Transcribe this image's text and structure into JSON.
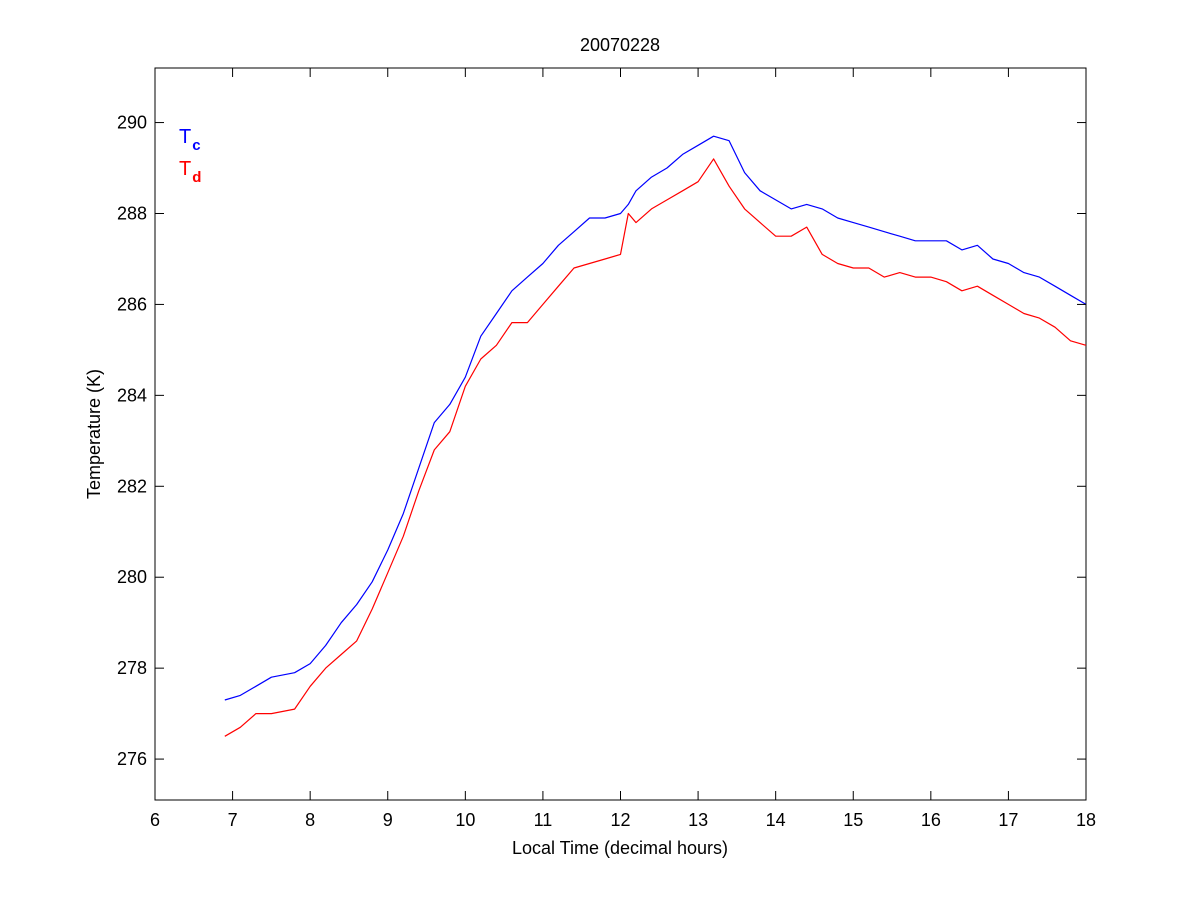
{
  "chart_data": {
    "type": "line",
    "title": "20070228",
    "xlabel": "Local Time (decimal hours)",
    "ylabel": "Temperature (K)",
    "xlim": [
      6,
      18
    ],
    "ylim": [
      275.1,
      291.2
    ],
    "xticks": [
      6,
      7,
      8,
      9,
      10,
      11,
      12,
      13,
      14,
      15,
      16,
      17,
      18
    ],
    "yticks": [
      276,
      278,
      280,
      282,
      284,
      286,
      288,
      290
    ],
    "grid": false,
    "legend_placement": "top-left",
    "series": [
      {
        "name": "T",
        "subscript": "c",
        "color": "#0000ff",
        "x": [
          6.9,
          7.1,
          7.3,
          7.5,
          7.8,
          8.0,
          8.2,
          8.4,
          8.6,
          8.8,
          9.0,
          9.2,
          9.4,
          9.6,
          9.8,
          10.0,
          10.2,
          10.4,
          10.6,
          10.8,
          11.0,
          11.2,
          11.4,
          11.6,
          11.8,
          12.0,
          12.1,
          12.2,
          12.4,
          12.6,
          12.8,
          13.0,
          13.2,
          13.4,
          13.6,
          13.8,
          14.0,
          14.2,
          14.4,
          14.6,
          14.8,
          15.0,
          15.2,
          15.4,
          15.6,
          15.8,
          16.0,
          16.2,
          16.4,
          16.6,
          16.8,
          17.0,
          17.2,
          17.4,
          17.6,
          17.8,
          18.0
        ],
        "y": [
          277.3,
          277.4,
          277.6,
          277.8,
          277.9,
          278.1,
          278.5,
          279.0,
          279.4,
          279.9,
          280.6,
          281.4,
          282.4,
          283.4,
          283.8,
          284.4,
          285.3,
          285.8,
          286.3,
          286.6,
          286.9,
          287.3,
          287.6,
          287.9,
          287.9,
          288.0,
          288.2,
          288.5,
          288.8,
          289.0,
          289.3,
          289.5,
          289.7,
          289.6,
          288.9,
          288.5,
          288.3,
          288.1,
          288.2,
          288.1,
          287.9,
          287.8,
          287.7,
          287.6,
          287.5,
          287.4,
          287.4,
          287.4,
          287.2,
          287.3,
          287.0,
          286.9,
          286.7,
          286.6,
          286.4,
          286.2,
          286.0
        ]
      },
      {
        "name": "T",
        "subscript": "d",
        "color": "#ff0000",
        "x": [
          6.9,
          7.1,
          7.3,
          7.5,
          7.8,
          8.0,
          8.2,
          8.4,
          8.6,
          8.8,
          9.0,
          9.2,
          9.4,
          9.6,
          9.8,
          10.0,
          10.2,
          10.4,
          10.6,
          10.8,
          11.0,
          11.2,
          11.4,
          11.6,
          11.8,
          12.0,
          12.1,
          12.2,
          12.4,
          12.6,
          12.8,
          13.0,
          13.2,
          13.4,
          13.6,
          13.8,
          14.0,
          14.2,
          14.4,
          14.6,
          14.8,
          15.0,
          15.2,
          15.4,
          15.6,
          15.8,
          16.0,
          16.2,
          16.4,
          16.6,
          16.8,
          17.0,
          17.2,
          17.4,
          17.6,
          17.8,
          18.0
        ],
        "y": [
          276.5,
          276.7,
          277.0,
          277.0,
          277.1,
          277.6,
          278.0,
          278.3,
          278.6,
          279.3,
          280.1,
          280.9,
          281.9,
          282.8,
          283.2,
          284.2,
          284.8,
          285.1,
          285.6,
          285.6,
          286.0,
          286.4,
          286.8,
          286.9,
          287.0,
          287.1,
          288.0,
          287.8,
          288.1,
          288.3,
          288.5,
          288.7,
          289.2,
          288.6,
          288.1,
          287.8,
          287.5,
          287.5,
          287.7,
          287.1,
          286.9,
          286.8,
          286.8,
          286.6,
          286.7,
          286.6,
          286.6,
          286.5,
          286.3,
          286.4,
          286.2,
          286.0,
          285.8,
          285.7,
          285.5,
          285.2,
          285.1
        ]
      }
    ]
  }
}
